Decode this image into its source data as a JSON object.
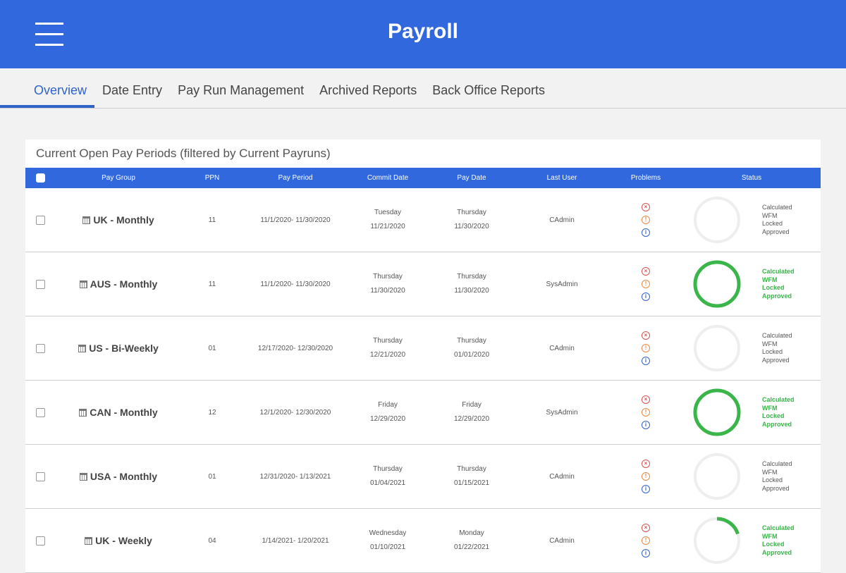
{
  "header": {
    "title": "Payroll",
    "menu_icon": "hamburger-icon"
  },
  "tabs": [
    {
      "label": "Overview",
      "active": true
    },
    {
      "label": "Date Entry"
    },
    {
      "label": "Pay Run Management"
    },
    {
      "label": "Archived Reports"
    },
    {
      "label": "Back Office Reports"
    }
  ],
  "card": {
    "title": "Current Open Pay Periods (filtered by Current Payruns)"
  },
  "columns": [
    "Pay Group",
    "PPN",
    "Pay Period",
    "Commit Date",
    "Pay Date",
    "Last User",
    "Problems",
    "Status"
  ],
  "status_labels": [
    "Calculated",
    "WFM",
    "Locked",
    "Approved"
  ],
  "colors": {
    "accent": "#3168de",
    "complete": "#3ab54a",
    "error": "#d9534f",
    "warning": "#f0883e",
    "info": "#2f63c9"
  },
  "rows": [
    {
      "group": "UK - Monthly",
      "ppn": "11",
      "period": "11/1/2020- 11/30/2020",
      "commit_day": "Tuesday",
      "commit_date": "11/21/2020",
      "pay_day": "Thursday",
      "pay_date": "11/30/2020",
      "user": "CAdmin",
      "progress": 0
    },
    {
      "group": "AUS - Monthly",
      "ppn": "11",
      "period": "11/1/2020- 11/30/2020",
      "commit_day": "Thursday",
      "commit_date": "11/30/2020",
      "pay_day": "Thursday",
      "pay_date": "11/30/2020",
      "user": "SysAdmin",
      "progress": 1
    },
    {
      "group": "US - Bi-Weekly",
      "ppn": "01",
      "period": "12/17/2020- 12/30/2020",
      "commit_day": "Thursday",
      "commit_date": "12/21/2020",
      "pay_day": "Thursday",
      "pay_date": "01/01/2020",
      "user": "CAdmin",
      "progress": 0
    },
    {
      "group": "CAN - Monthly",
      "ppn": "12",
      "period": "12/1/2020- 12/30/2020",
      "commit_day": "Friday",
      "commit_date": "12/29/2020",
      "pay_day": "Friday",
      "pay_date": "12/29/2020",
      "user": "SysAdmin",
      "progress": 1
    },
    {
      "group": "USA - Monthly",
      "ppn": "01",
      "period": "12/31/2020- 1/13/2021",
      "commit_day": "Thursday",
      "commit_date": "01/04/2021",
      "pay_day": "Thursday",
      "pay_date": "01/15/2021",
      "user": "CAdmin",
      "progress": 0
    },
    {
      "group": "UK - Weekly",
      "ppn": "04",
      "period": "1/14/2021- 1/20/2021",
      "commit_day": "Wednesday",
      "commit_date": "01/10/2021",
      "pay_day": "Monday",
      "pay_date": "01/22/2021",
      "user": "CAdmin",
      "progress": 0.2
    }
  ]
}
